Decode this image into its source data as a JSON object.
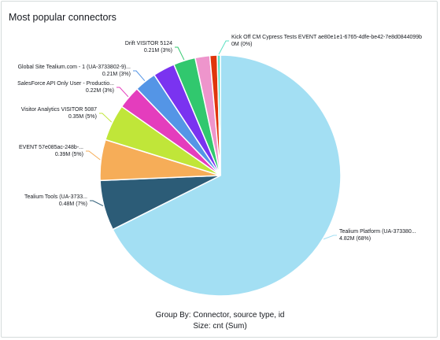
{
  "panel": {
    "title": "Most popular connectors"
  },
  "footer": {
    "group_by": "Group By: Connector, source type, id",
    "size": "Size: cnt (Sum)"
  },
  "chart_data": {
    "type": "pie",
    "slices": [
      {
        "label": "Tealium Platform (UA-373380...",
        "value_text": "4.82M (68%)",
        "value": 4.82,
        "color": "#a3dff3"
      },
      {
        "label": "Tealium Tools (UA-3733...",
        "value_text": "0.48M (7%)",
        "value": 0.48,
        "color": "#2c5c77"
      },
      {
        "label": "EVENT 57e085ac-248b-...",
        "value_text": "0.39M (5%)",
        "value": 0.39,
        "color": "#f6ad58"
      },
      {
        "label": "Visitor Analytics VISITOR 5087",
        "value_text": "0.35M (5%)",
        "value": 0.35,
        "color": "#c0e639"
      },
      {
        "label": "SalesForce API Only User - Productio...",
        "value_text": "0.22M (3%)",
        "value": 0.22,
        "color": "#e43dbd"
      },
      {
        "label": "Global Site Tealium.com - 1 (UA-3733802-9)...",
        "value_text": "0.21M (3%)",
        "value": 0.21,
        "color": "#5495e6"
      },
      {
        "label": "",
        "value_text": "",
        "value": 0.21,
        "color": "#7a33f0"
      },
      {
        "label": "Drift VISITOR 5124",
        "value_text": "0.21M (3%)",
        "value": 0.21,
        "color": "#31c86e"
      },
      {
        "label": "",
        "value_text": "",
        "value": 0.14,
        "color": "#ee95cc"
      },
      {
        "label": "",
        "value_text": "",
        "value": 0.07,
        "color": "#e0350c"
      },
      {
        "label": "Kick Off CM Cypress Tests EVENT ae80e1e1-6765-4dfe-be42-7e8d0844099b",
        "value_text": "0M (0%)",
        "value": 0.03,
        "color": "#5ce0c2"
      }
    ]
  }
}
